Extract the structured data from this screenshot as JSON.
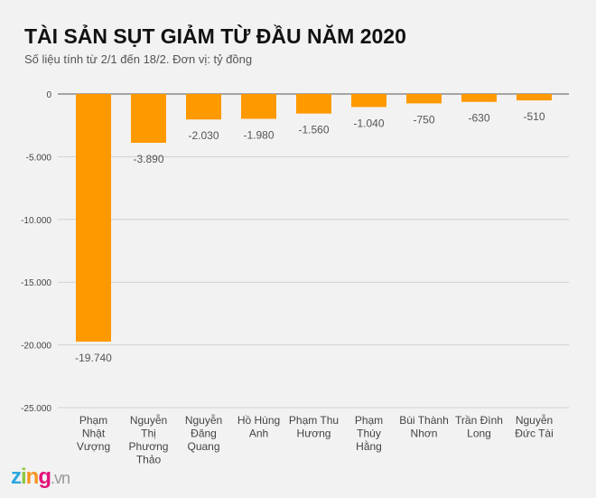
{
  "title": "TÀI SẢN SỤT GIẢM TỪ ĐẦU NĂM 2020",
  "subtitle": "Số liệu tính từ 2/1 đến 18/2. Đơn vị: tỷ đồng",
  "logo": {
    "text": "zing",
    "suffix": ".vn"
  },
  "chart_data": {
    "type": "bar",
    "title": "TÀI SẢN SỤT GIẢM TỪ ĐẦU NĂM 2020",
    "subtitle": "Số liệu tính từ 2/1 đến 18/2. Đơn vị: tỷ đồng",
    "categories": [
      [
        "Phạm",
        "Nhật",
        "Vượng"
      ],
      [
        "Nguyễn",
        "Thị",
        "Phương",
        "Thảo"
      ],
      [
        "Nguyễn",
        "Đăng",
        "Quang"
      ],
      [
        "Hồ Hùng",
        "Anh"
      ],
      [
        "Phạm Thu",
        "Hương"
      ],
      [
        "Phạm",
        "Thúy",
        "Hằng"
      ],
      [
        "Bùi Thành",
        "Nhơn"
      ],
      [
        "Trần Đình",
        "Long"
      ],
      [
        "Nguyễn",
        "Đức Tài"
      ]
    ],
    "values": [
      -19740,
      -3890,
      -2030,
      -1980,
      -1560,
      -1040,
      -750,
      -630,
      -510
    ],
    "data_labels": [
      "-19.740",
      "-3.890",
      "-2.030",
      "-1.980",
      "-1.560",
      "-1.040",
      "-750",
      "-630",
      "-510"
    ],
    "yticks": [
      0,
      -5000,
      -10000,
      -15000,
      -20000,
      -25000
    ],
    "ytick_labels": [
      "0",
      "-5.000",
      "-10.000",
      "-15.000",
      "-20.000",
      "-25.000"
    ],
    "ylim": [
      -25000,
      0
    ],
    "grid": true,
    "bar_color": "#ff9900"
  }
}
